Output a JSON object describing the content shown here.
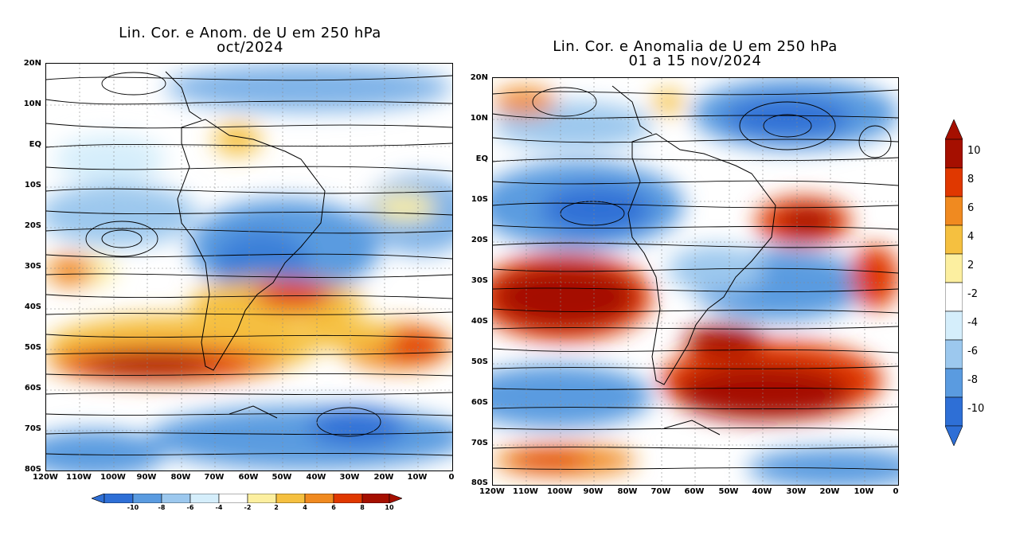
{
  "left_panel": {
    "title_line1": "Lin. Cor. e Anom. de U em 250 hPa",
    "title_line2": "oct/2024",
    "lat_labels": [
      "20N",
      "10N",
      "EQ",
      "10S",
      "20S",
      "30S",
      "40S",
      "50S",
      "60S",
      "70S",
      "80S"
    ],
    "lon_labels": [
      "120W",
      "110W",
      "100W",
      "90W",
      "80W",
      "70W",
      "60W",
      "50W",
      "40W",
      "30W",
      "20W",
      "10W",
      "0"
    ]
  },
  "right_panel": {
    "title_line1": "Lin. Cor. e Anomalia de U em 250 hPa",
    "title_line2": "01 a 15 nov/2024",
    "lat_labels": [
      "20N",
      "10N",
      "EQ",
      "10S",
      "20S",
      "30S",
      "40S",
      "50S",
      "60S",
      "70S",
      "80S"
    ],
    "lon_labels": [
      "120W",
      "110W",
      "100W",
      "90W",
      "80W",
      "70W",
      "60W",
      "50W",
      "40W",
      "30W",
      "20W",
      "10W",
      "0"
    ]
  },
  "colorbar": {
    "labels": [
      "10",
      "8",
      "6",
      "4",
      "2",
      "-2",
      "-4",
      "-6",
      "-8",
      "-10"
    ],
    "colors": [
      "#a50f00",
      "#e03800",
      "#f08a20",
      "#f5c040",
      "#fcefa0",
      "#ffffff",
      "#d5eefb",
      "#9cc8ee",
      "#5a9be0",
      "#2e6fd6"
    ],
    "small_labels": [
      "-10",
      "-8",
      "-6",
      "-4",
      "-2",
      "2",
      "4",
      "6",
      "8",
      "10"
    ]
  }
}
